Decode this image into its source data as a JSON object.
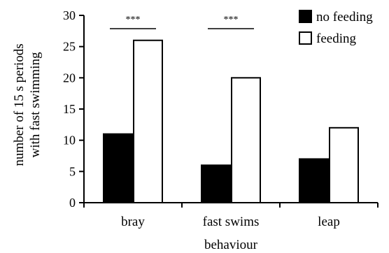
{
  "chart_data": {
    "type": "bar",
    "title": "",
    "xlabel": "behaviour",
    "ylabel_lines": [
      "number of 15 s periods",
      "with fast swimming"
    ],
    "categories": [
      "bray",
      "fast swims",
      "leap"
    ],
    "series": [
      {
        "name": "no feeding",
        "values": [
          11,
          6,
          7
        ],
        "color": "#000000"
      },
      {
        "name": "feeding",
        "values": [
          26,
          20,
          12
        ],
        "color": "#ffffff"
      }
    ],
    "ylim": [
      0,
      30
    ],
    "yticks": [
      "0",
      "5",
      "10",
      "15",
      "20",
      "25",
      "30"
    ],
    "significance": [
      {
        "category_index": 0,
        "label": "***"
      },
      {
        "category_index": 1,
        "label": "***"
      }
    ],
    "legend_position": "top-right",
    "grid": false
  }
}
